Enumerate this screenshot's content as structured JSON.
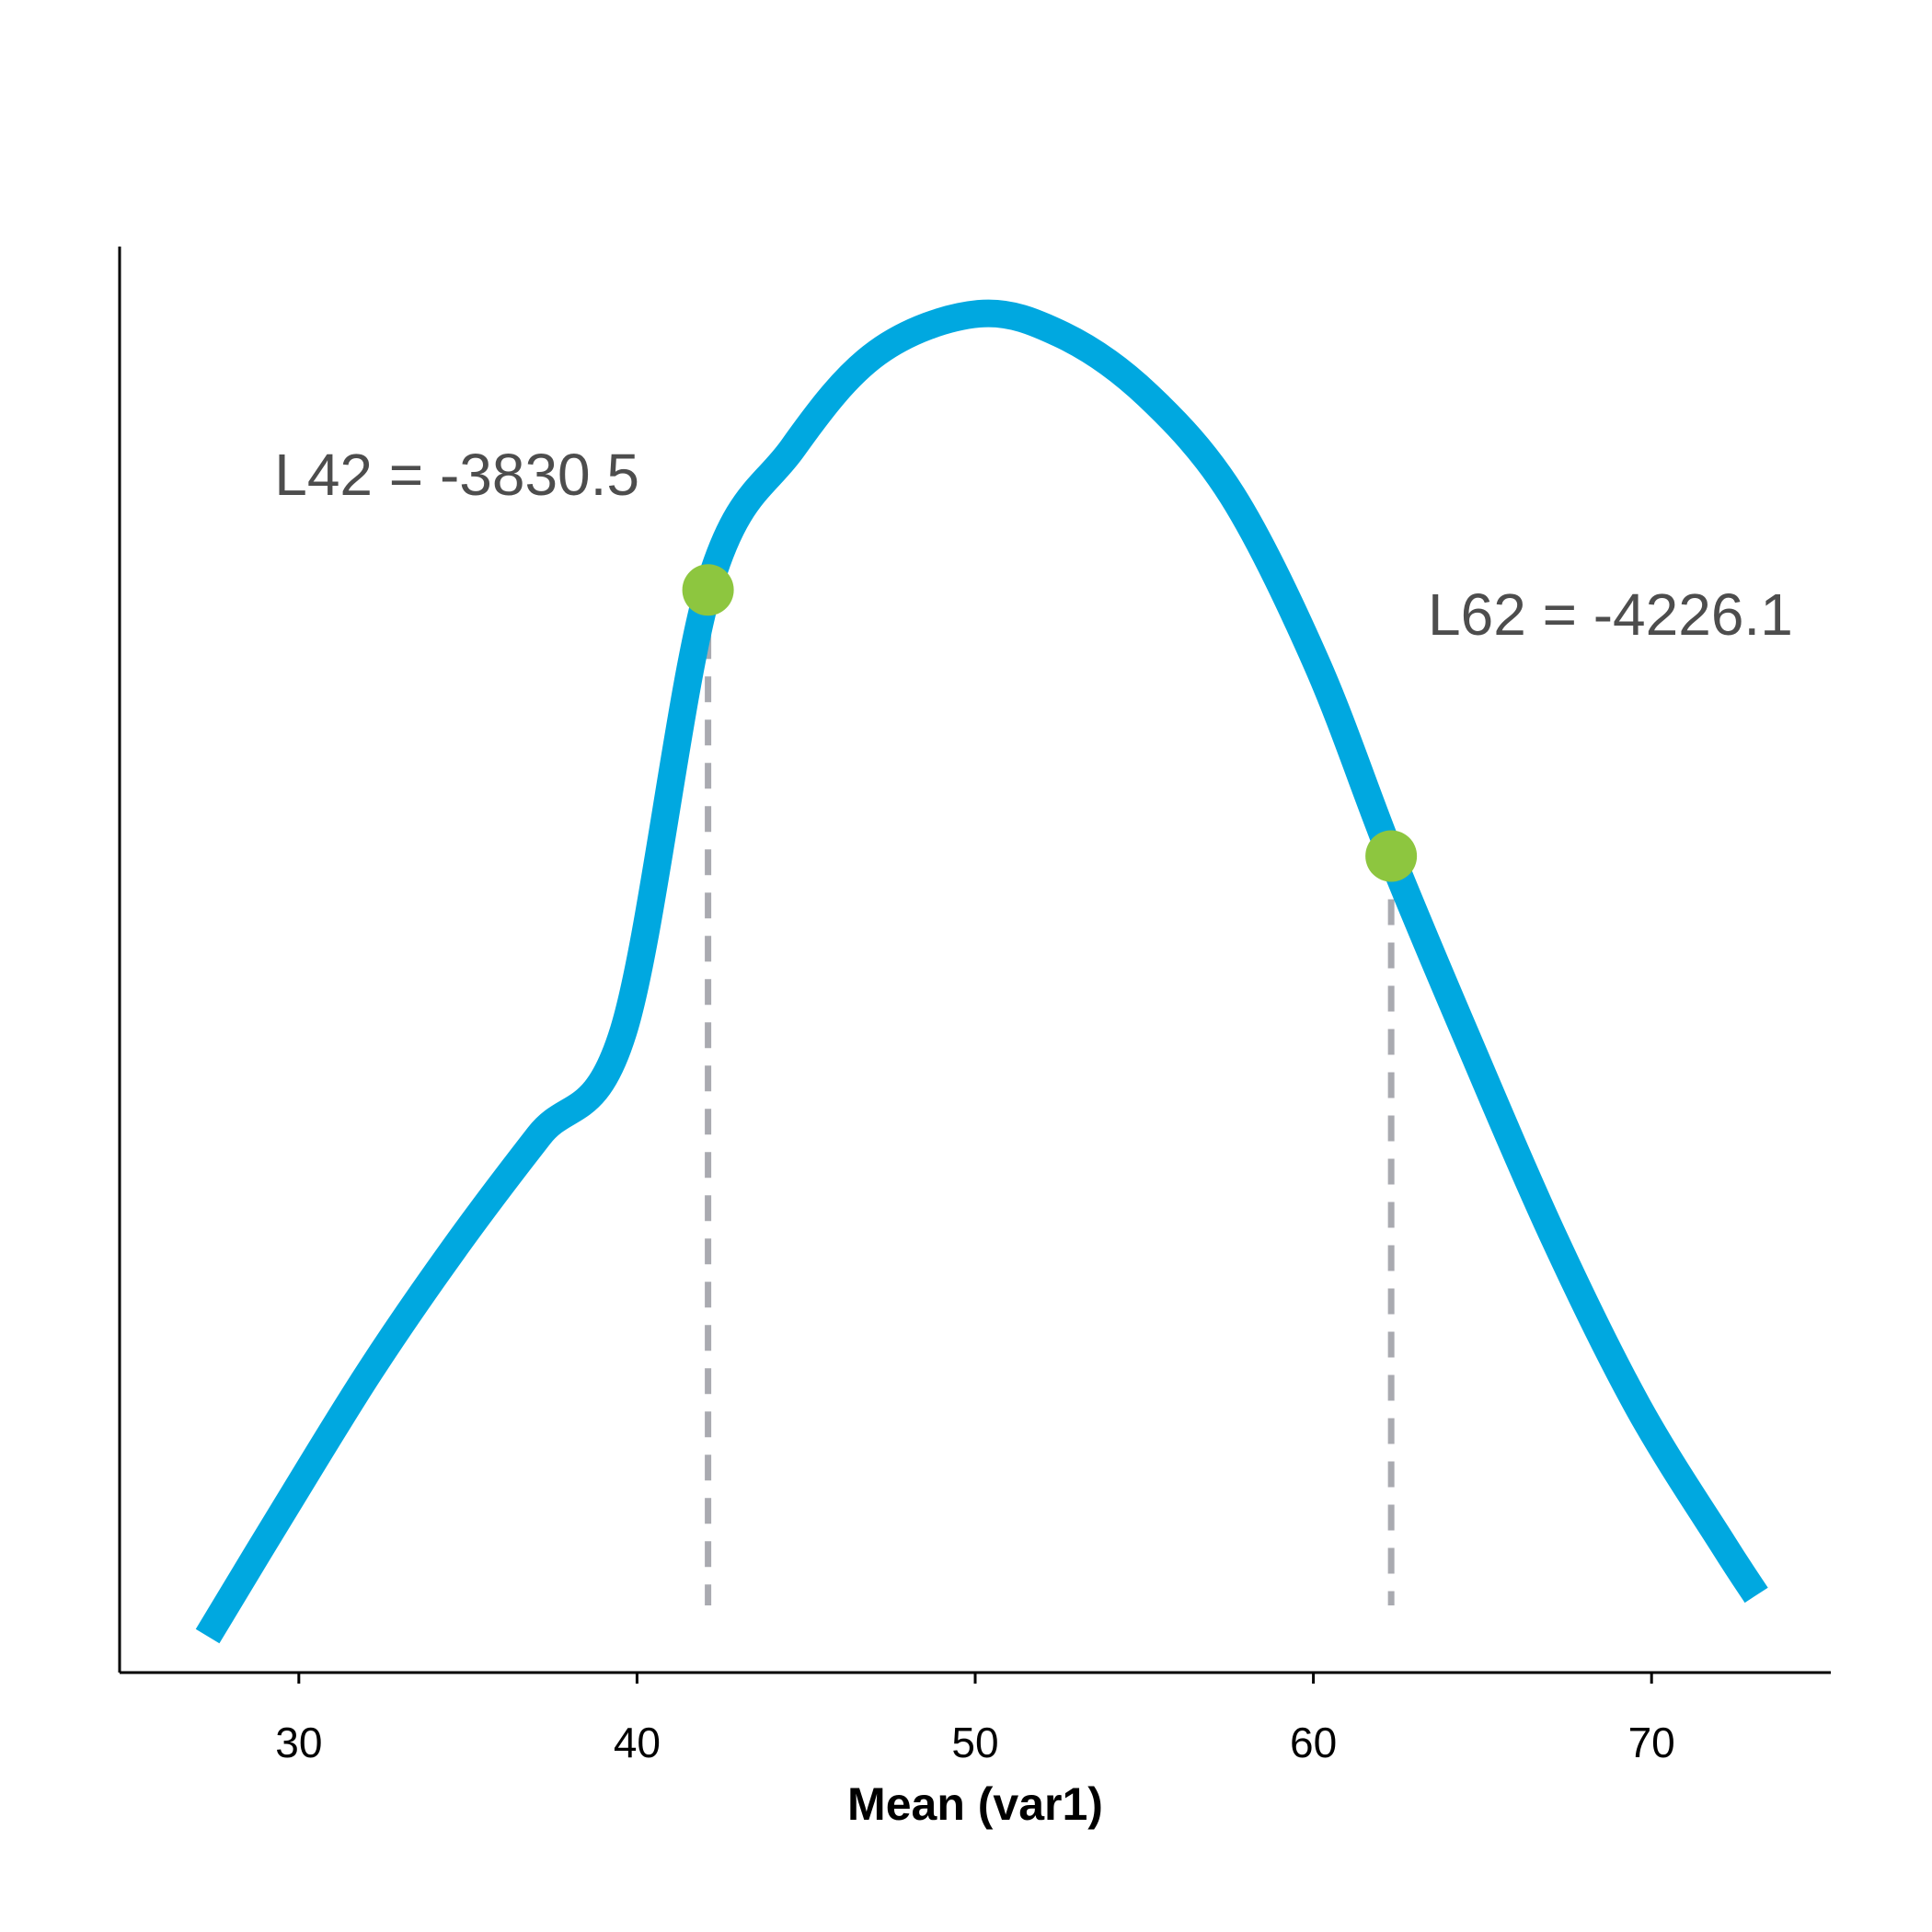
{
  "chart_data": {
    "type": "line",
    "title": "",
    "xlabel": "Mean (var1)",
    "ylabel": "",
    "xlim": [
      24.7,
      75.3
    ],
    "ylim": [
      -5440,
      -3320
    ],
    "x_ticks": [
      "30",
      "40",
      "50",
      "60",
      "70"
    ],
    "grid": false,
    "legend": "none",
    "series": [
      {
        "x": [
          27.3,
          29.6,
          32.1,
          34.6,
          37.1,
          39.6,
          42.1,
          44.6,
          47.1,
          50.1,
          52.6,
          55.1,
          57.6,
          60.1,
          62.3,
          64.6,
          67.1,
          69.6,
          72.1,
          73.1
        ],
        "y": [
          -5386,
          -5195,
          -4992,
          -4809,
          -4642,
          -4486,
          -3830.5,
          -3620,
          -3478,
          -3420,
          -3452,
          -3541,
          -3690,
          -3940,
          -4226.1,
          -4503,
          -4792,
          -5045,
          -5248,
          -5325
        ]
      }
    ],
    "points": [
      {
        "label": "L42 = -3830.5",
        "x": 42.1,
        "y": -3830.5
      },
      {
        "label": "L62 = -4226.1",
        "x": 62.3,
        "y": -4226.1
      }
    ],
    "colors": {
      "curve": "#00a8e0",
      "points": "#8dc63f",
      "dashes": "#a9aab0",
      "annotation_text": "#4d4d4d",
      "axis": "#000000"
    }
  }
}
